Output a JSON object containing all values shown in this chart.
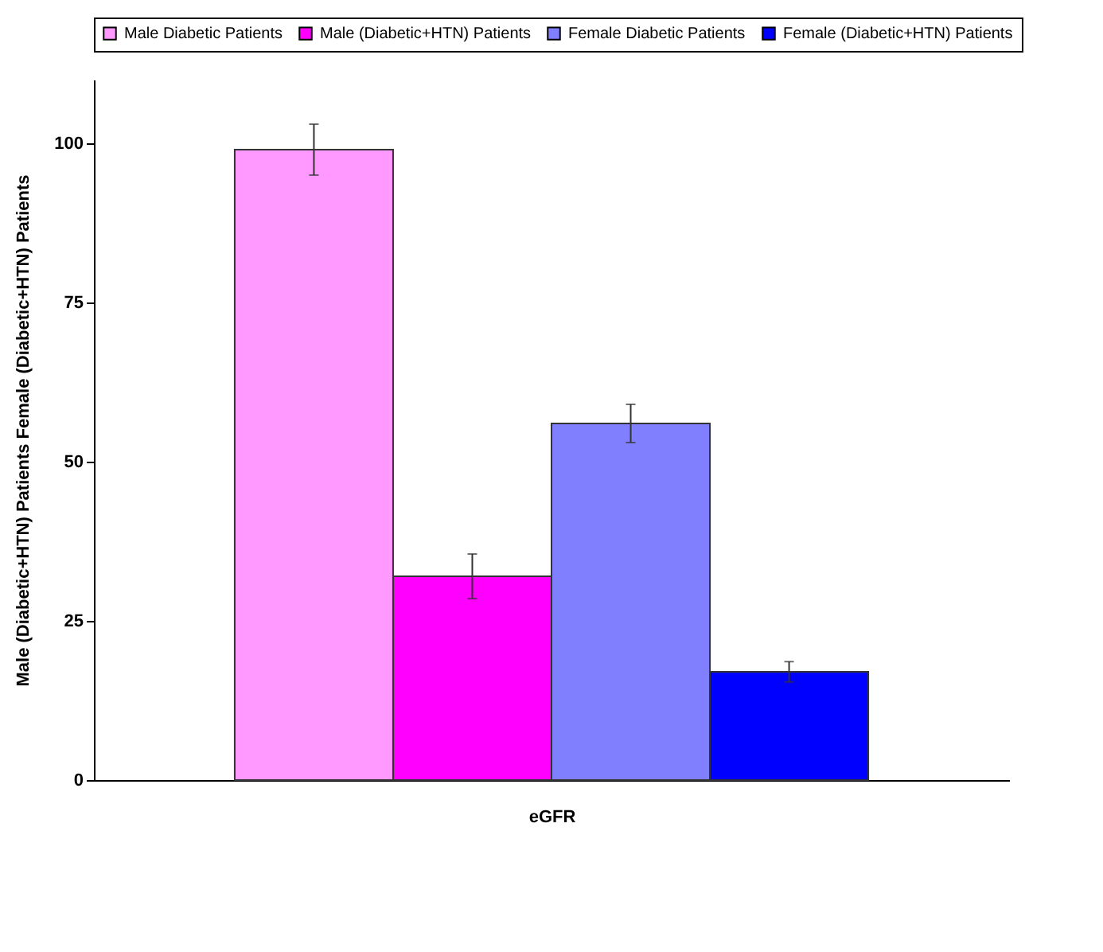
{
  "chart_data": {
    "type": "bar",
    "xlabel": "eGFR",
    "ylabel": "Male (Diabetic+HTN) Patients  Female (Diabetic+HTN) Patients",
    "categories": [
      null
    ],
    "series": [
      {
        "name": "Male Diabetic Patients",
        "color": "#ff99ff",
        "values": [
          99
        ],
        "errors": [
          4
        ]
      },
      {
        "name": "Male (Diabetic+HTN) Patients",
        "color": "#ff00ff",
        "values": [
          32
        ],
        "errors": [
          3.5
        ]
      },
      {
        "name": "Female Diabetic Patients",
        "color": "#8080ff",
        "values": [
          56
        ],
        "errors": [
          3
        ]
      },
      {
        "name": "Female (Diabetic+HTN) Patients",
        "color": "#0000ff",
        "values": [
          17
        ],
        "errors": [
          1.6
        ]
      }
    ],
    "ylim": [
      0,
      110
    ],
    "yticks": [
      0,
      25,
      50,
      75,
      100
    ],
    "grid": false,
    "legend": "top"
  }
}
